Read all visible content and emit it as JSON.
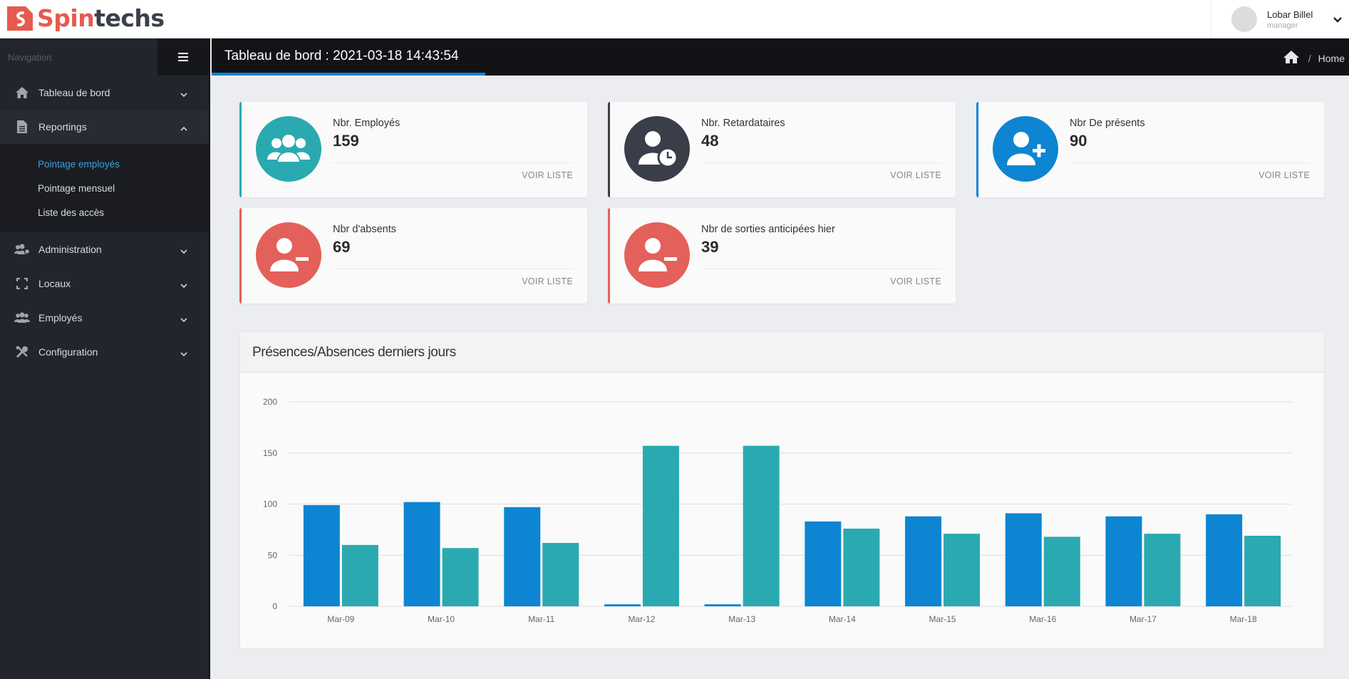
{
  "brand": {
    "name_part1": "Spin",
    "name_part2": "techs"
  },
  "user": {
    "name": "Lobar Billel",
    "role": "manager"
  },
  "sidebar": {
    "header": "Navigation",
    "items": [
      {
        "label": "Tableau de bord",
        "icon": "home-icon"
      },
      {
        "label": "Reportings",
        "icon": "document-icon",
        "open": true
      },
      {
        "label": "Administration",
        "icon": "users-cog-icon"
      },
      {
        "label": "Locaux",
        "icon": "expand-icon"
      },
      {
        "label": "Employés",
        "icon": "users-icon"
      },
      {
        "label": "Configuration",
        "icon": "tools-icon"
      }
    ],
    "reportings_sub": [
      {
        "label": "Pointage employés",
        "active": true
      },
      {
        "label": "Pointage mensuel"
      },
      {
        "label": "Liste des accès"
      }
    ]
  },
  "page": {
    "title": "Tableau de bord : 2021-03-18 14:43:54",
    "breadcrumb": "Home"
  },
  "cards": [
    {
      "label": "Nbr. Employés",
      "value": "159",
      "link": "VOIR LISTE",
      "color": "#2ba9b0",
      "icon": "users-icon"
    },
    {
      "label": "Nbr. Retardataires",
      "value": "48",
      "link": "VOIR LISTE",
      "color": "#3a3e48",
      "icon": "user-clock-icon"
    },
    {
      "label": "Nbr De présents",
      "value": "90",
      "link": "VOIR LISTE",
      "color": "#0d85d2",
      "icon": "user-plus-icon"
    },
    {
      "label": "Nbr d'absents",
      "value": "69",
      "link": "VOIR LISTE",
      "color": "#e4605a",
      "icon": "user-minus-icon"
    },
    {
      "label": "Nbr de sorties anticipées hier",
      "value": "39",
      "link": "VOIR LISTE",
      "color": "#e4605a",
      "icon": "user-minus-icon"
    }
  ],
  "chart_panel": {
    "title": "Présences/Absences derniers jours"
  },
  "chart_data": {
    "type": "bar",
    "categories": [
      "Mar-09",
      "Mar-10",
      "Mar-11",
      "Mar-12",
      "Mar-13",
      "Mar-14",
      "Mar-15",
      "Mar-16",
      "Mar-17",
      "Mar-18"
    ],
    "series": [
      {
        "values": [
          99,
          102,
          97,
          2,
          2,
          83,
          88,
          91,
          88,
          90
        ],
        "color": "#0d85d2"
      },
      {
        "values": [
          60,
          57,
          62,
          157,
          157,
          76,
          71,
          68,
          71,
          69
        ],
        "color": "#2ba9b0"
      }
    ],
    "ylim": [
      0,
      200
    ],
    "yticks": [
      0,
      50,
      100,
      150,
      200
    ],
    "grid": true
  }
}
